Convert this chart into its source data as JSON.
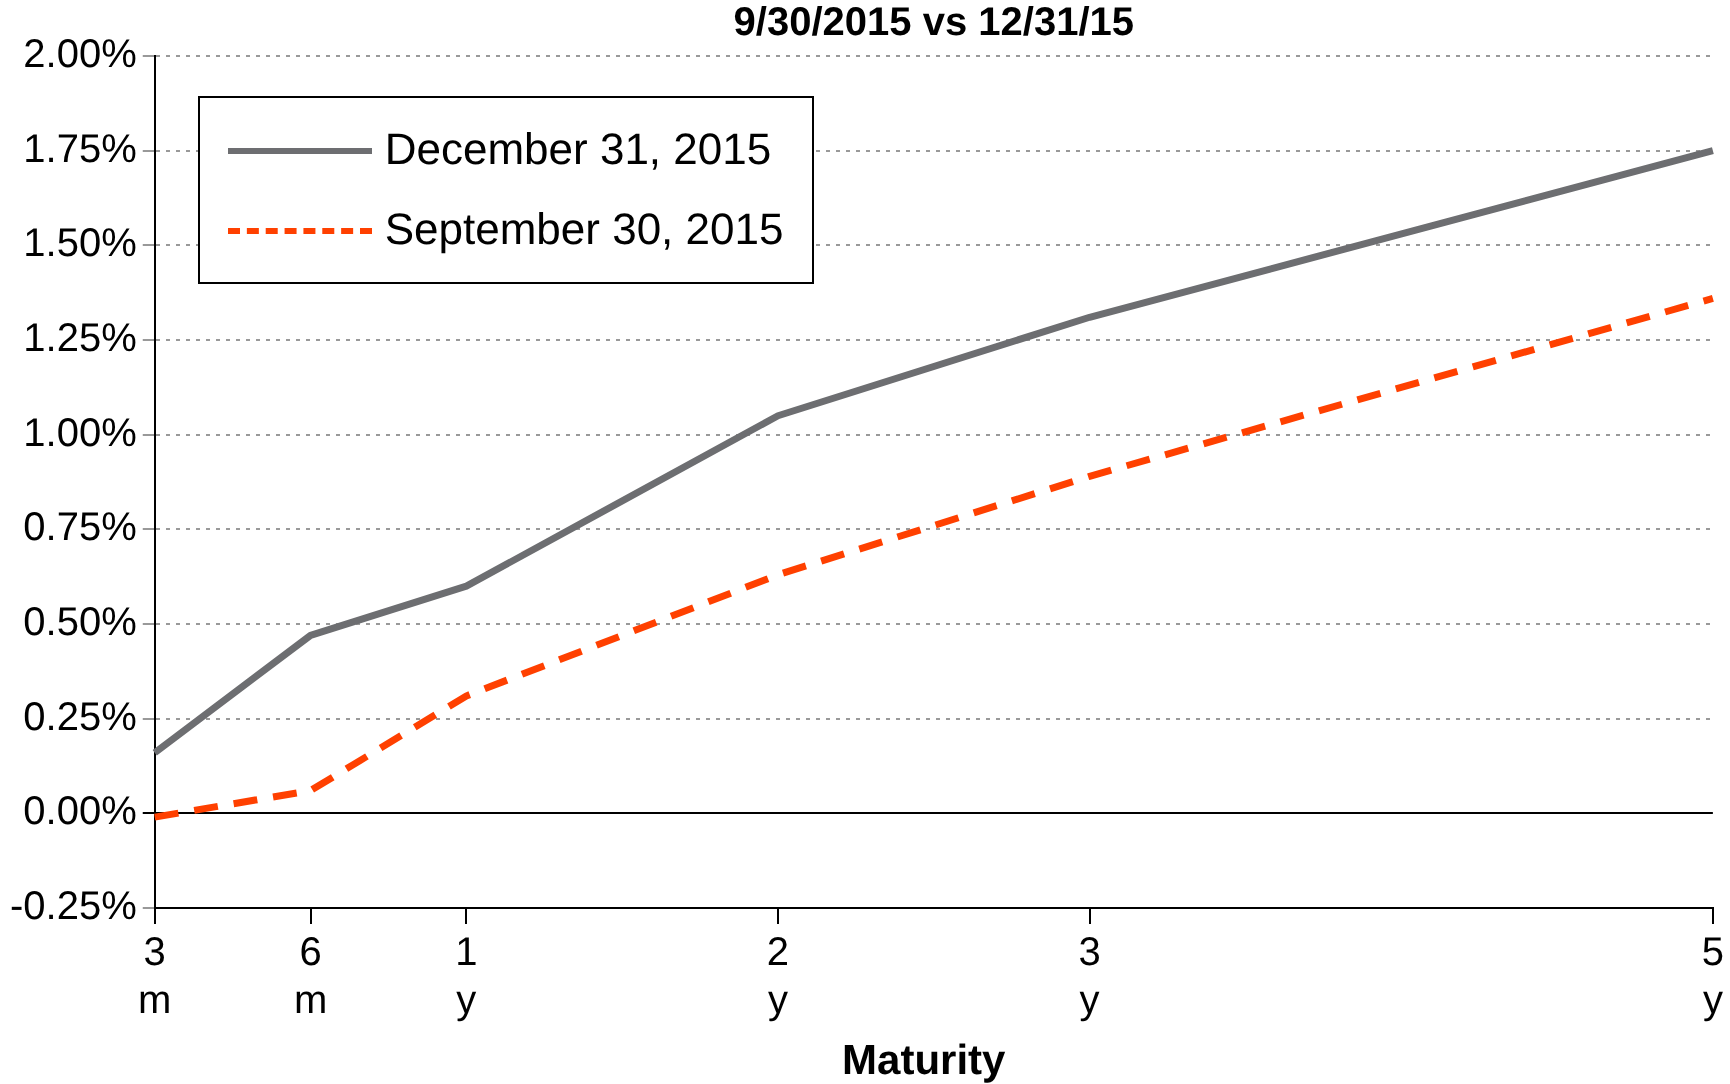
{
  "chart_data": {
    "type": "line",
    "title": "9/30/2015 vs 12/31/15",
    "xlabel": "Maturity",
    "categories": [
      "3 m",
      "6 m",
      "1 y",
      null,
      "2 y",
      null,
      "3 y",
      null,
      null,
      null,
      "5 y"
    ],
    "series": [
      {
        "name": "December 31, 2015",
        "color": "#6d6e71",
        "values": [
          0.16,
          0.47,
          0.6,
          null,
          1.05,
          null,
          1.31,
          null,
          null,
          null,
          1.75
        ],
        "line_style": "solid"
      },
      {
        "name": "September 30, 2015",
        "color": "#ff4000",
        "values": [
          -0.01,
          0.06,
          0.31,
          null,
          0.63,
          null,
          0.89,
          null,
          null,
          null,
          1.36
        ],
        "line_style": "dashed"
      }
    ],
    "ylim": [
      -0.25,
      2
    ],
    "yticks": [
      {
        "value": -0.25,
        "label": "-0.25%"
      },
      {
        "value": 0,
        "label": "0.00%"
      },
      {
        "value": 0.25,
        "label": "0.25%"
      },
      {
        "value": 0.5,
        "label": "0.50%"
      },
      {
        "value": 0.75,
        "label": "0.75%"
      },
      {
        "value": 1,
        "label": "1.00%"
      },
      {
        "value": 1.25,
        "label": "1.25%"
      },
      {
        "value": 1.5,
        "label": "1.50%"
      },
      {
        "value": 1.75,
        "label": "1.75%"
      },
      {
        "value": 2,
        "label": "2.00%"
      }
    ],
    "grid": "y",
    "legend": "top left",
    "marker": "none"
  }
}
